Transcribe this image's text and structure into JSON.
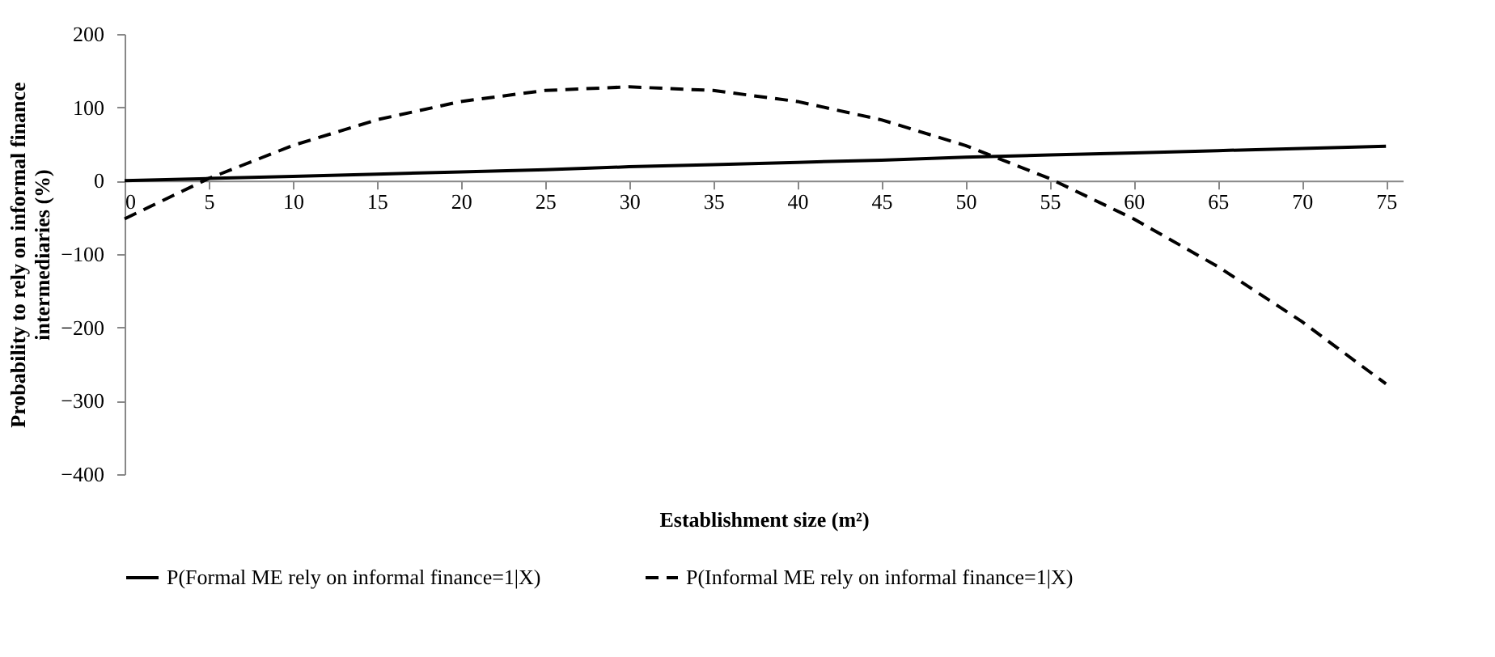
{
  "chart_data": {
    "type": "line",
    "xlabel": "Establishment size (m²)",
    "ylabel": "Probability to rely on informal finance intermediaries (%)",
    "x": [
      0,
      5,
      10,
      15,
      20,
      25,
      30,
      35,
      40,
      45,
      50,
      55,
      60,
      65,
      70,
      75
    ],
    "series": [
      {
        "name": "P(Formal ME rely on informal finance=1|X)",
        "color": "#000000",
        "line_style": "solid",
        "values": [
          0,
          3,
          6,
          9,
          12,
          15,
          19,
          22,
          25,
          28,
          32,
          35,
          38,
          41,
          44,
          47
        ]
      },
      {
        "name": "P(Informal ME rely on informal finance=1|X)",
        "color": "#000000",
        "line_style": "dashed",
        "values": [
          -52,
          3,
          48,
          83,
          108,
          123,
          128,
          123,
          108,
          83,
          48,
          3,
          -52,
          -117,
          -192,
          -277
        ]
      }
    ],
    "xlim": [
      0,
      76
    ],
    "xticks": [
      0,
      5,
      10,
      15,
      20,
      25,
      30,
      35,
      40,
      45,
      50,
      55,
      60,
      65,
      70,
      75
    ],
    "ylim": [
      -400,
      200
    ],
    "yticks": [
      -400,
      -300,
      -200,
      -100,
      0,
      100,
      200
    ],
    "grid": false,
    "legend": "bottom",
    "marker": "none"
  }
}
